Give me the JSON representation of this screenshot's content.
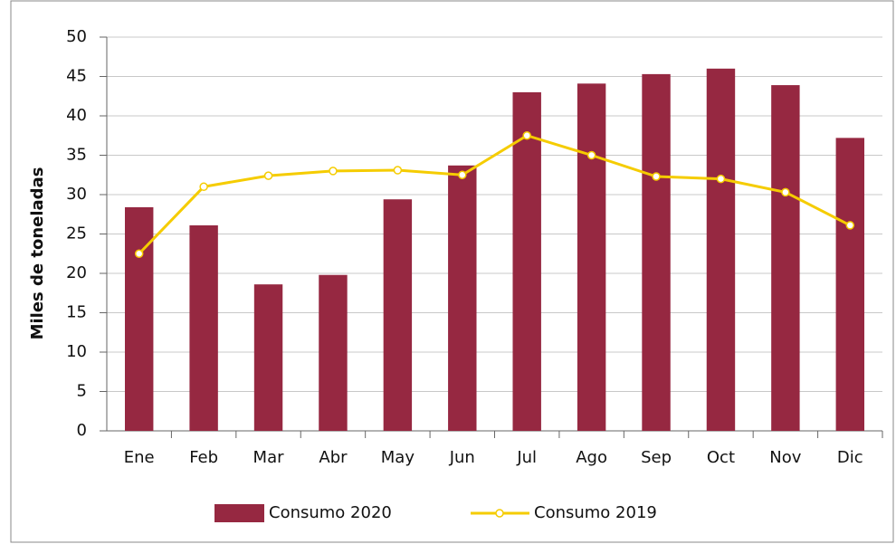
{
  "chart_data": {
    "type": "bar_line",
    "y_label": "Miles de toneladas",
    "categories": [
      "Ene",
      "Feb",
      "Mar",
      "Abr",
      "May",
      "Jun",
      "Jul",
      "Ago",
      "Sep",
      "Oct",
      "Nov",
      "Dic"
    ],
    "series": [
      {
        "name": "Consumo 2020",
        "type": "bar",
        "color": "#962841",
        "values": [
          28.4,
          26.1,
          18.6,
          19.8,
          29.4,
          33.7,
          43.0,
          44.1,
          45.3,
          46.0,
          43.9,
          37.2
        ]
      },
      {
        "name": "Consumo 2019",
        "type": "line",
        "color": "#f5cc00",
        "values": [
          22.5,
          31.0,
          32.4,
          33.0,
          33.1,
          32.5,
          37.5,
          35.0,
          32.3,
          32.0,
          30.3,
          26.1
        ]
      }
    ],
    "ylim": [
      0,
      50
    ],
    "yticks": [
      0,
      5,
      10,
      15,
      20,
      25,
      30,
      35,
      40,
      45,
      50
    ],
    "grid": true
  }
}
